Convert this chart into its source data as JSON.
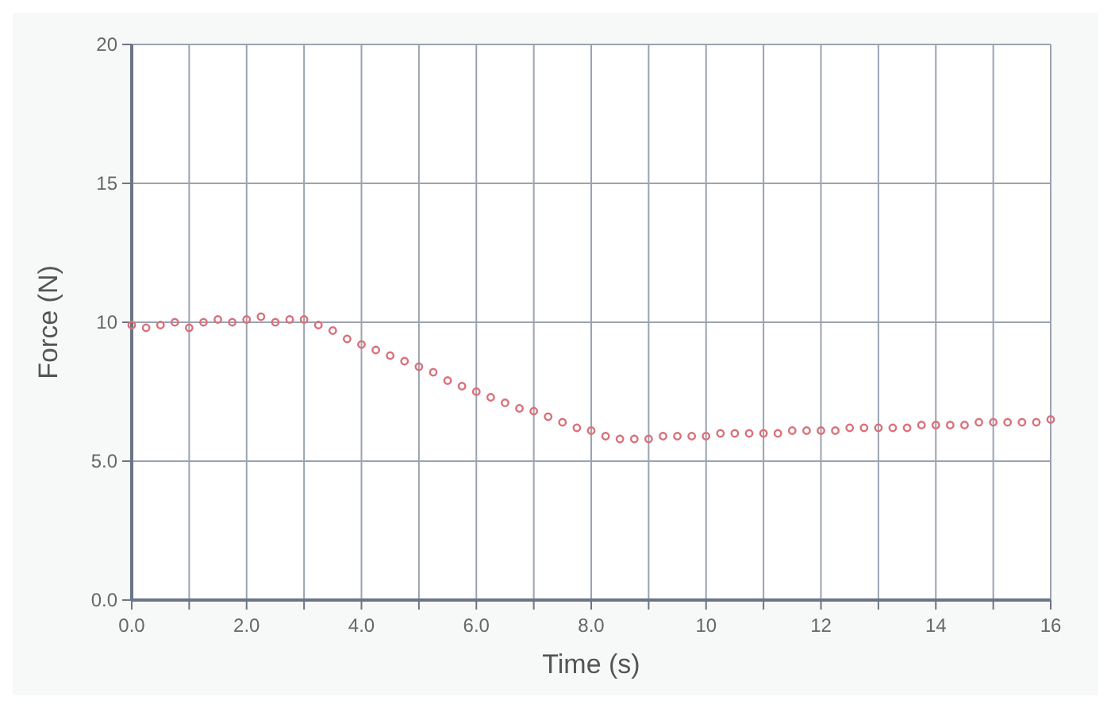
{
  "chart_data": {
    "type": "scatter",
    "xlabel": "Time (s)",
    "ylabel": "Force (N)",
    "xlim": [
      0,
      16
    ],
    "xticks": [
      {
        "value": 0,
        "label": "0.0"
      },
      {
        "value": 1,
        "label": null
      },
      {
        "value": 2,
        "label": "2.0"
      },
      {
        "value": 3,
        "label": null
      },
      {
        "value": 4,
        "label": "4.0"
      },
      {
        "value": 5,
        "label": null
      },
      {
        "value": 6,
        "label": "6.0"
      },
      {
        "value": 7,
        "label": null
      },
      {
        "value": 8,
        "label": "8.0"
      },
      {
        "value": 9,
        "label": null
      },
      10,
      {
        "value": 11,
        "label": null
      },
      12,
      {
        "value": 13,
        "label": null
      },
      14,
      {
        "value": 15,
        "label": null
      },
      16
    ],
    "ylim": [
      0,
      20
    ],
    "yticks": [
      {
        "value": 0,
        "label": "0.0"
      },
      {
        "value": 5,
        "label": "5.0"
      },
      10,
      15,
      20
    ],
    "grid": true,
    "marker": "circle",
    "series": [
      {
        "color": "#d9707a",
        "x": [
          0,
          0.25,
          0.5,
          0.75,
          1,
          1.25,
          1.5,
          1.75,
          2,
          2.25,
          2.5,
          2.75,
          3,
          3.25,
          3.5,
          3.75,
          4,
          4.25,
          4.5,
          4.75,
          5,
          5.25,
          5.5,
          5.75,
          6,
          6.25,
          6.5,
          6.75,
          7,
          7.25,
          7.5,
          7.75,
          8,
          8.25,
          8.5,
          8.75,
          9,
          9.25,
          9.5,
          9.75,
          10,
          10.25,
          10.5,
          10.75,
          11,
          11.25,
          11.5,
          11.75,
          12,
          12.25,
          12.5,
          12.75,
          13,
          13.25,
          13.5,
          13.75,
          14,
          14.25,
          14.5,
          14.75,
          15,
          15.25,
          15.5,
          15.75,
          16
        ],
        "values": [
          9.9,
          9.8,
          9.9,
          10.0,
          9.8,
          10.0,
          10.1,
          10.0,
          10.1,
          10.2,
          10.0,
          10.1,
          10.1,
          9.9,
          9.7,
          9.4,
          9.2,
          9.0,
          8.8,
          8.6,
          8.4,
          8.2,
          7.9,
          7.7,
          7.5,
          7.3,
          7.1,
          6.9,
          6.8,
          6.6,
          6.4,
          6.2,
          6.1,
          5.9,
          5.8,
          5.8,
          5.8,
          5.9,
          5.9,
          5.9,
          5.9,
          6.0,
          6.0,
          6.0,
          6.0,
          6.0,
          6.1,
          6.1,
          6.1,
          6.1,
          6.2,
          6.2,
          6.2,
          6.2,
          6.2,
          6.3,
          6.3,
          6.3,
          6.3,
          6.4,
          6.4,
          6.4,
          6.4,
          6.4,
          6.5
        ]
      }
    ]
  }
}
